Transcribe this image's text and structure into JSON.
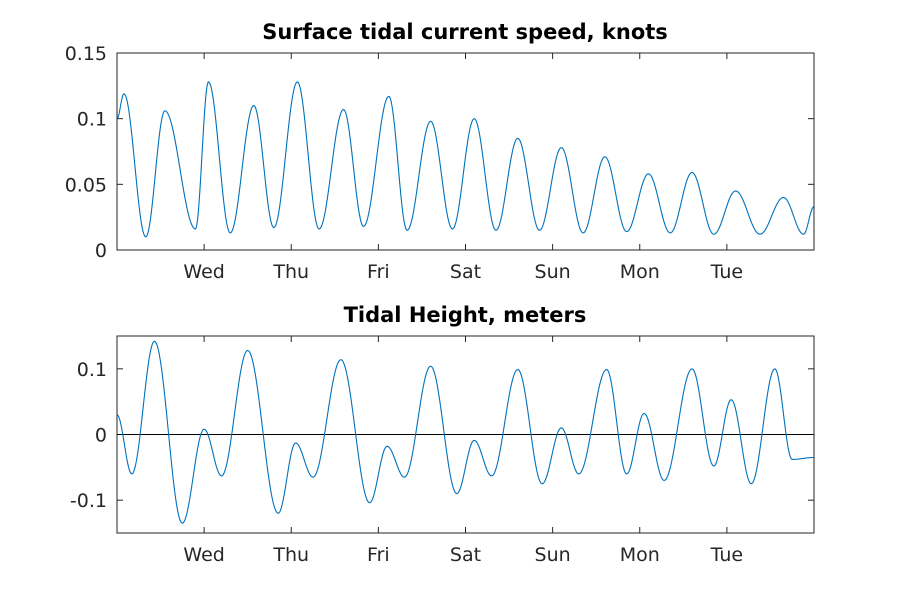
{
  "chart_data": [
    {
      "type": "line",
      "title": "Surface tidal current speed, knots",
      "xlabel": "",
      "ylabel": "",
      "x_ticks": [
        "Wed",
        "Thu",
        "Fri",
        "Sat",
        "Sun",
        "Mon",
        "Tue"
      ],
      "y_ticks": [
        "0",
        "0.05",
        "0.1",
        "0.15"
      ],
      "y_tick_values": [
        0,
        0.05,
        0.1,
        0.15
      ],
      "ylim": [
        0,
        0.15
      ],
      "xlim_days": [
        0,
        8
      ],
      "x_tick_days": [
        1,
        2,
        3,
        4,
        5,
        6,
        7
      ],
      "grid": false,
      "color": "#0072bd",
      "series": [
        {
          "x": [
            0.0,
            0.08,
            0.33,
            0.55,
            0.9,
            1.05,
            1.3,
            1.57,
            1.8,
            2.07,
            2.32,
            2.6,
            2.83,
            3.12,
            3.33,
            3.6,
            3.85,
            4.1,
            4.35,
            4.6,
            4.85,
            5.1,
            5.35,
            5.6,
            5.85,
            6.1,
            6.35,
            6.6,
            6.85,
            7.1,
            7.38,
            7.65,
            7.88,
            8.0
          ],
          "y": [
            0.1,
            0.119,
            0.01,
            0.106,
            0.016,
            0.128,
            0.013,
            0.11,
            0.017,
            0.128,
            0.016,
            0.107,
            0.018,
            0.117,
            0.015,
            0.098,
            0.016,
            0.1,
            0.015,
            0.085,
            0.015,
            0.078,
            0.013,
            0.071,
            0.014,
            0.058,
            0.013,
            0.059,
            0.012,
            0.045,
            0.012,
            0.04,
            0.012,
            0.033
          ]
        }
      ]
    },
    {
      "type": "line",
      "title": "Tidal Height, meters",
      "xlabel": "",
      "ylabel": "",
      "x_ticks": [
        "Wed",
        "Thu",
        "Fri",
        "Sat",
        "Sun",
        "Mon",
        "Tue"
      ],
      "y_ticks": [
        "-0.1",
        "0",
        "0.1"
      ],
      "y_tick_values": [
        -0.1,
        0,
        0.1
      ],
      "ylim": [
        -0.15,
        0.15
      ],
      "xlim_days": [
        0,
        8
      ],
      "x_tick_days": [
        1,
        2,
        3,
        4,
        5,
        6,
        7
      ],
      "zero_line": true,
      "grid": false,
      "color": "#0072bd",
      "series": [
        {
          "x": [
            0.0,
            0.17,
            0.43,
            0.75,
            1.0,
            1.2,
            1.5,
            1.85,
            2.05,
            2.25,
            2.57,
            2.9,
            3.1,
            3.3,
            3.6,
            3.9,
            4.1,
            4.3,
            4.6,
            4.88,
            5.1,
            5.3,
            5.62,
            5.85,
            6.05,
            6.28,
            6.6,
            6.85,
            7.05,
            7.28,
            7.55,
            7.75,
            8.0
          ],
          "y": [
            0.03,
            -0.06,
            0.142,
            -0.135,
            0.008,
            -0.063,
            0.128,
            -0.12,
            -0.013,
            -0.065,
            0.114,
            -0.104,
            -0.018,
            -0.065,
            0.104,
            -0.09,
            -0.009,
            -0.063,
            0.099,
            -0.075,
            0.01,
            -0.06,
            0.099,
            -0.06,
            0.032,
            -0.07,
            0.1,
            -0.048,
            0.053,
            -0.075,
            0.1,
            -0.038,
            -0.035
          ]
        }
      ]
    }
  ]
}
